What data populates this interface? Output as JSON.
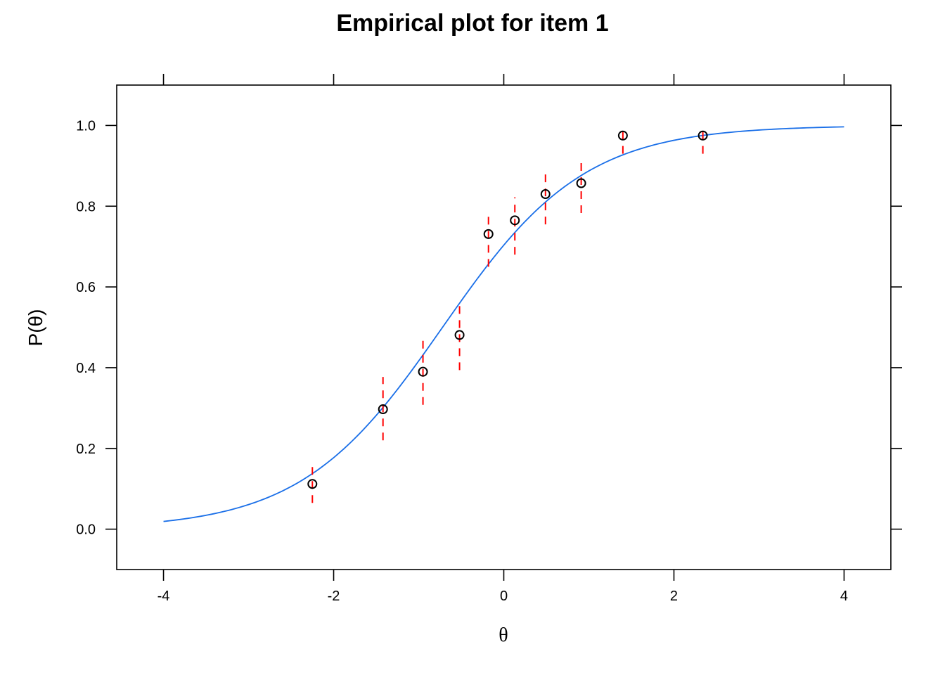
{
  "chart_data": {
    "type": "scatter",
    "title": "Empirical plot for item 1",
    "xlabel": "θ",
    "ylabel": "P(θ)",
    "xlim": [
      -4.55,
      4.55
    ],
    "ylim": [
      -0.1,
      1.1
    ],
    "x_ticks": [
      "-4",
      "-2",
      "0",
      "2",
      "4"
    ],
    "y_ticks": [
      "0.0",
      "0.2",
      "0.4",
      "0.6",
      "0.8",
      "1.0"
    ],
    "grid": false,
    "colors": {
      "curve": "#1a6fe8",
      "error_bars": "#ff0000",
      "points": "#000000"
    },
    "curve": {
      "name": "",
      "model": "logistic",
      "a": 1.2,
      "b": -0.72,
      "x_range": [
        -4,
        4
      ]
    },
    "points": {
      "x": [
        -2.25,
        -1.42,
        -0.95,
        -0.52,
        -0.18,
        0.13,
        0.49,
        0.91,
        1.4,
        2.34
      ],
      "y": [
        0.112,
        0.297,
        0.39,
        0.481,
        0.731,
        0.765,
        0.83,
        0.857,
        0.975,
        0.975
      ],
      "lower": [
        0.065,
        0.22,
        0.308,
        0.394,
        0.65,
        0.68,
        0.755,
        0.783,
        0.93,
        0.93
      ],
      "upper": [
        0.163,
        0.377,
        0.472,
        0.568,
        0.785,
        0.822,
        0.89,
        0.908,
        0.997,
        0.997
      ]
    }
  }
}
